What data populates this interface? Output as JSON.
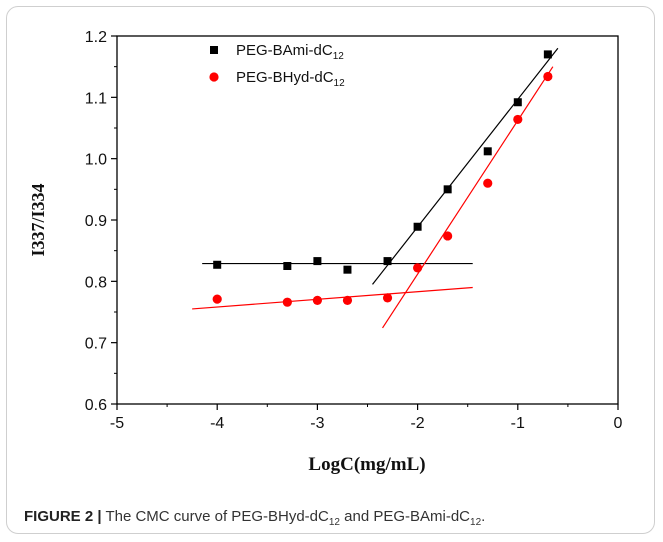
{
  "chart_data": {
    "type": "scatter",
    "xlabel": "LogC(mg/mL)",
    "ylabel": "I337/I334",
    "xlim": [
      -5,
      0
    ],
    "ylim": [
      0.6,
      1.2
    ],
    "xticks": [
      "-5",
      "-4",
      "-3",
      "-2",
      "-1",
      "0"
    ],
    "yticks": [
      "0.6",
      "0.7",
      "0.8",
      "0.9",
      "1.0",
      "1.1",
      "1.2"
    ],
    "legend_placement": "top-left",
    "series": [
      {
        "name": "PEG-BAmi-dC",
        "name_sub": "12",
        "marker": "square",
        "color": "#000000",
        "x": [
          -4.0,
          -3.3,
          -3.0,
          -2.7,
          -2.3,
          -2.0,
          -1.7,
          -1.3,
          -1.0,
          -0.7
        ],
        "y": [
          0.827,
          0.825,
          0.833,
          0.819,
          0.833,
          0.889,
          0.95,
          1.012,
          1.092,
          1.17
        ]
      },
      {
        "name": "PEG-BHyd-dC",
        "name_sub": "12",
        "marker": "circle",
        "color": "#ff0000",
        "x": [
          -4.0,
          -3.3,
          -3.0,
          -2.7,
          -2.3,
          -2.0,
          -1.7,
          -1.3,
          -1.0,
          -0.7
        ],
        "y": [
          0.771,
          0.766,
          0.769,
          0.769,
          0.773,
          0.822,
          0.874,
          0.96,
          1.064,
          1.134
        ]
      }
    ],
    "fit_lines": [
      {
        "color": "#000000",
        "x": [
          -4.15,
          -1.45
        ],
        "y": [
          0.829,
          0.829
        ]
      },
      {
        "color": "#000000",
        "x": [
          -2.45,
          -0.6
        ],
        "y": [
          0.795,
          1.18
        ]
      },
      {
        "color": "#ff0000",
        "x": [
          -4.25,
          -1.45
        ],
        "y": [
          0.755,
          0.79
        ]
      },
      {
        "color": "#ff0000",
        "x": [
          -2.35,
          -0.65
        ],
        "y": [
          0.724,
          1.15
        ]
      }
    ]
  },
  "caption": {
    "label": "FIGURE 2 |",
    "text_before": " The CMC curve of PEG-BHyd-dC",
    "sub1": "12",
    "text_middle": " and PEG-BAmi-dC",
    "sub2": "12",
    "text_end": "."
  }
}
